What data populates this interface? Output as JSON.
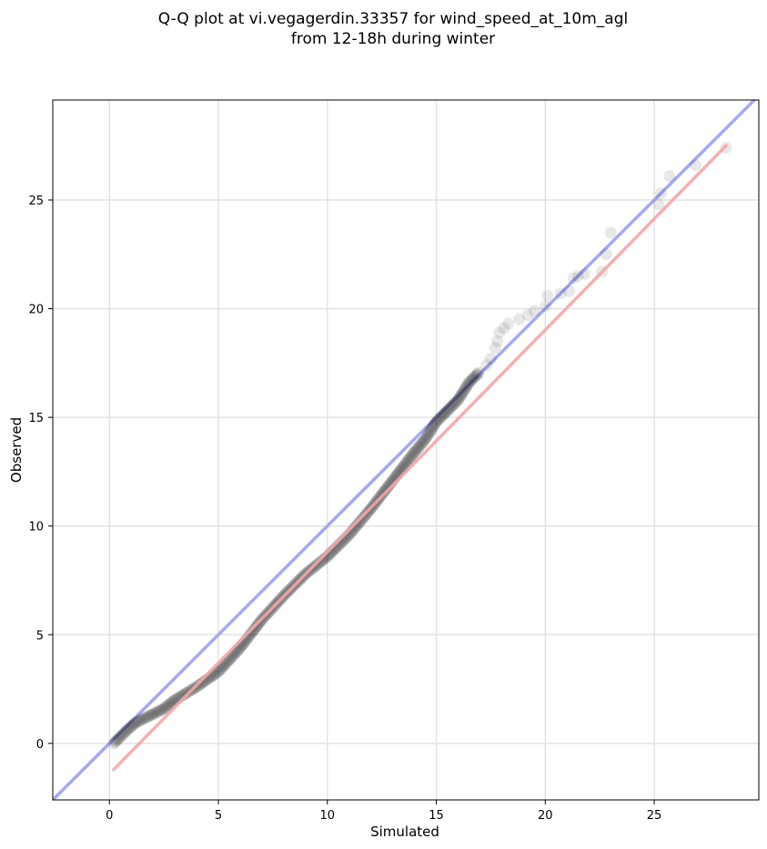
{
  "chart_data": {
    "type": "scatter",
    "title": "Q-Q plot at vi.vegagerdin.33357 for wind_speed_at_10m_agl\nfrom 12-18h during winter",
    "title_lines": [
      "Q-Q plot at vi.vegagerdin.33357 for wind_speed_at_10m_agl",
      "from 12-18h during winter"
    ],
    "xlabel": "Simulated",
    "ylabel": "Observed",
    "xlim": [
      -2.6,
      29.8
    ],
    "ylim": [
      -2.6,
      29.6
    ],
    "xticks": [
      0,
      5,
      10,
      15,
      20,
      25
    ],
    "yticks": [
      0,
      5,
      10,
      15,
      20,
      25
    ],
    "xtick_labels": [
      "0",
      "5",
      "10",
      "15",
      "20",
      "25"
    ],
    "ytick_labels": [
      "0",
      "5",
      "10",
      "15",
      "20",
      "25"
    ],
    "grid": true,
    "reference_line": {
      "name": "1:1 line",
      "color": "#a5a9f0",
      "points": [
        [
          -2.6,
          -2.6
        ],
        [
          29.8,
          29.8
        ]
      ]
    },
    "fit_line": {
      "name": "linear fit",
      "color": "#f4a6a6",
      "points": [
        [
          0.2,
          -1.2
        ],
        [
          28.3,
          27.5
        ]
      ]
    },
    "quantile_curve": [
      [
        0.2,
        0.0
      ],
      [
        0.5,
        0.3
      ],
      [
        0.8,
        0.6
      ],
      [
        1.2,
        0.95
      ],
      [
        1.8,
        1.25
      ],
      [
        2.5,
        1.6
      ],
      [
        3.0,
        2.0
      ],
      [
        4.0,
        2.6
      ],
      [
        5.0,
        3.3
      ],
      [
        6.0,
        4.4
      ],
      [
        7.0,
        5.7
      ],
      [
        8.0,
        6.8
      ],
      [
        9.0,
        7.8
      ],
      [
        10.0,
        8.6
      ],
      [
        11.0,
        9.6
      ],
      [
        12.0,
        10.8
      ],
      [
        13.0,
        12.1
      ],
      [
        14.0,
        13.4
      ],
      [
        14.5,
        14.0
      ],
      [
        15.0,
        14.8
      ],
      [
        15.5,
        15.3
      ],
      [
        16.0,
        15.8
      ],
      [
        16.5,
        16.6
      ],
      [
        17.0,
        17.1
      ]
    ],
    "tail_points": [
      [
        17.3,
        17.4
      ],
      [
        17.5,
        17.7
      ],
      [
        17.7,
        18.2
      ],
      [
        17.8,
        18.5
      ],
      [
        17.9,
        18.9
      ],
      [
        18.1,
        19.1
      ],
      [
        18.3,
        19.3
      ],
      [
        18.8,
        19.5
      ],
      [
        19.2,
        19.7
      ],
      [
        19.5,
        19.9
      ],
      [
        20.0,
        20.1
      ],
      [
        20.1,
        20.6
      ],
      [
        20.7,
        20.7
      ],
      [
        21.1,
        20.8
      ],
      [
        21.3,
        21.4
      ],
      [
        21.5,
        21.5
      ],
      [
        21.8,
        21.6
      ],
      [
        22.6,
        21.7
      ],
      [
        22.8,
        22.5
      ],
      [
        23.0,
        23.5
      ],
      [
        25.2,
        24.8
      ],
      [
        25.3,
        25.3
      ],
      [
        25.7,
        26.1
      ],
      [
        26.9,
        26.6
      ],
      [
        28.3,
        27.4
      ]
    ],
    "marker_color": "#000000"
  }
}
